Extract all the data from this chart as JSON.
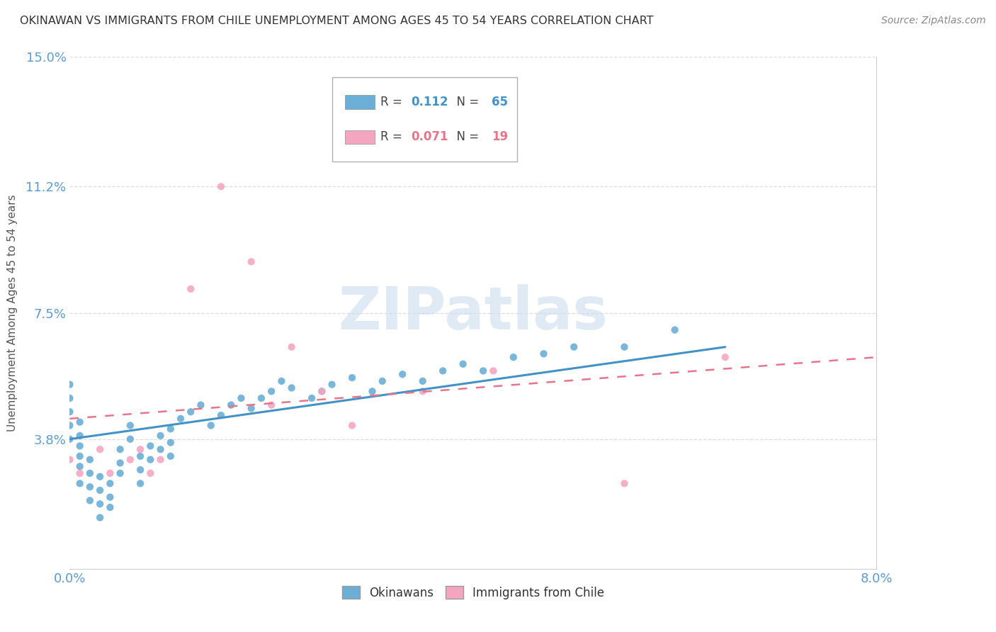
{
  "title": "OKINAWAN VS IMMIGRANTS FROM CHILE UNEMPLOYMENT AMONG AGES 45 TO 54 YEARS CORRELATION CHART",
  "source": "Source: ZipAtlas.com",
  "ylabel": "Unemployment Among Ages 45 to 54 years",
  "xlim": [
    0.0,
    0.08
  ],
  "ylim": [
    0.0,
    0.15
  ],
  "xticks": [
    0.0,
    0.01,
    0.02,
    0.03,
    0.04,
    0.05,
    0.06,
    0.07,
    0.08
  ],
  "xticklabels": [
    "0.0%",
    "",
    "",
    "",
    "",
    "",
    "",
    "",
    "8.0%"
  ],
  "ytick_positions": [
    0.038,
    0.075,
    0.112,
    0.15
  ],
  "ytick_labels": [
    "3.8%",
    "7.5%",
    "11.2%",
    "15.0%"
  ],
  "okinawan_color": "#6baed6",
  "chile_color": "#f4a6c0",
  "ok_trend_color": "#4292c6",
  "ch_trend_color": "#e8748a",
  "background_color": "#ffffff",
  "grid_color": "#dddddd",
  "title_color": "#333333",
  "source_color": "#888888",
  "tick_color": "#5b9bd5",
  "watermark_color": "#ccddef",
  "ok_r_val": "0.112",
  "ok_n_val": "65",
  "ch_r_val": "0.071",
  "ch_n_val": "19",
  "ok_x": [
    0.0,
    0.0,
    0.0,
    0.0,
    0.0,
    0.001,
    0.001,
    0.001,
    0.001,
    0.001,
    0.001,
    0.002,
    0.002,
    0.002,
    0.002,
    0.003,
    0.003,
    0.003,
    0.003,
    0.004,
    0.004,
    0.004,
    0.005,
    0.005,
    0.005,
    0.006,
    0.006,
    0.007,
    0.007,
    0.007,
    0.008,
    0.008,
    0.009,
    0.009,
    0.01,
    0.01,
    0.01,
    0.011,
    0.012,
    0.013,
    0.014,
    0.015,
    0.016,
    0.017,
    0.018,
    0.019,
    0.02,
    0.021,
    0.022,
    0.024,
    0.025,
    0.026,
    0.028,
    0.03,
    0.031,
    0.033,
    0.035,
    0.037,
    0.039,
    0.041,
    0.044,
    0.047,
    0.05,
    0.055,
    0.06
  ],
  "ok_y": [
    0.038,
    0.042,
    0.046,
    0.05,
    0.054,
    0.025,
    0.03,
    0.033,
    0.036,
    0.039,
    0.043,
    0.02,
    0.024,
    0.028,
    0.032,
    0.015,
    0.019,
    0.023,
    0.027,
    0.018,
    0.021,
    0.025,
    0.028,
    0.031,
    0.035,
    0.038,
    0.042,
    0.025,
    0.029,
    0.033,
    0.032,
    0.036,
    0.035,
    0.039,
    0.033,
    0.037,
    0.041,
    0.044,
    0.046,
    0.048,
    0.042,
    0.045,
    0.048,
    0.05,
    0.047,
    0.05,
    0.052,
    0.055,
    0.053,
    0.05,
    0.052,
    0.054,
    0.056,
    0.052,
    0.055,
    0.057,
    0.055,
    0.058,
    0.06,
    0.058,
    0.062,
    0.063,
    0.065,
    0.065,
    0.07
  ],
  "ch_x": [
    0.0,
    0.001,
    0.003,
    0.004,
    0.006,
    0.007,
    0.008,
    0.009,
    0.012,
    0.015,
    0.018,
    0.02,
    0.022,
    0.025,
    0.028,
    0.035,
    0.042,
    0.055,
    0.065
  ],
  "ch_y": [
    0.032,
    0.028,
    0.035,
    0.028,
    0.032,
    0.035,
    0.028,
    0.032,
    0.082,
    0.112,
    0.09,
    0.048,
    0.065,
    0.052,
    0.042,
    0.052,
    0.058,
    0.025,
    0.062
  ],
  "ok_trend_x0": 0.0,
  "ok_trend_y0": 0.038,
  "ok_trend_x1": 0.065,
  "ok_trend_y1": 0.065,
  "ch_trend_x0": 0.0,
  "ch_trend_y0": 0.044,
  "ch_trend_x1": 0.08,
  "ch_trend_y1": 0.062
}
